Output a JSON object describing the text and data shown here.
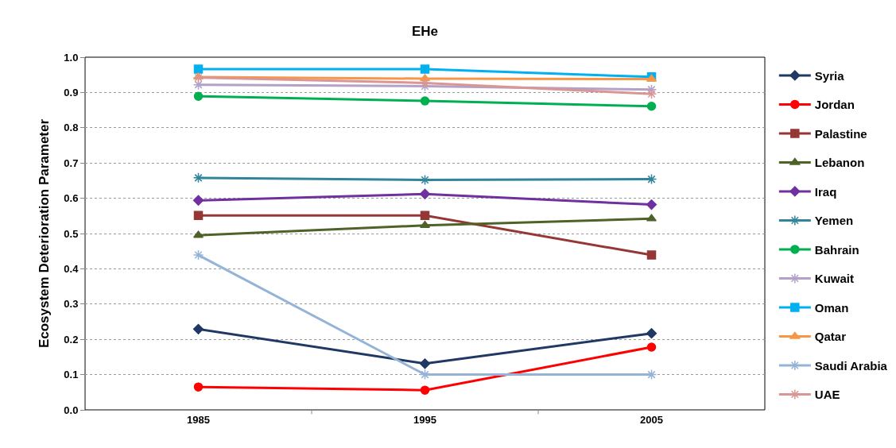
{
  "chart_data": {
    "type": "line",
    "title": "EHe",
    "ylabel": "Ecosystem Deterioration Parameter",
    "categories": [
      "1985",
      "1995",
      "2005"
    ],
    "series": [
      {
        "name": "Syria",
        "color": "#1f3864",
        "marker": "diamond",
        "values": [
          0.229,
          0.131,
          0.217
        ]
      },
      {
        "name": "Jordan",
        "color": "#ff0000",
        "marker": "circle",
        "values": [
          0.065,
          0.056,
          0.178
        ]
      },
      {
        "name": "Palastine",
        "color": "#953735",
        "marker": "square",
        "values": [
          0.551,
          0.551,
          0.439
        ]
      },
      {
        "name": "Lebanon",
        "color": "#4f6228",
        "marker": "triangle",
        "values": [
          0.495,
          0.523,
          0.542
        ]
      },
      {
        "name": "Iraq",
        "color": "#7030a0",
        "marker": "diamond",
        "values": [
          0.594,
          0.612,
          0.582
        ]
      },
      {
        "name": "Yemen",
        "color": "#31849b",
        "marker": "cross",
        "values": [
          0.658,
          0.652,
          0.654
        ]
      },
      {
        "name": "Bahrain",
        "color": "#00b050",
        "marker": "circle",
        "values": [
          0.889,
          0.876,
          0.861
        ]
      },
      {
        "name": "Kuwait",
        "color": "#b3a2c7",
        "marker": "cross",
        "values": [
          0.922,
          0.918,
          0.908
        ]
      },
      {
        "name": "Oman",
        "color": "#00b0f0",
        "marker": "square",
        "values": [
          0.966,
          0.966,
          0.944
        ]
      },
      {
        "name": "Qatar",
        "color": "#f79646",
        "marker": "triangle",
        "values": [
          0.944,
          0.939,
          0.938
        ]
      },
      {
        "name": "Saudi Arabia",
        "color": "#95b3d7",
        "marker": "cross",
        "values": [
          0.439,
          0.1,
          0.1
        ]
      },
      {
        "name": "UAE",
        "color": "#d99694",
        "marker": "cross",
        "values": [
          0.942,
          0.927,
          0.896
        ]
      }
    ],
    "ylim": [
      0,
      1
    ],
    "yticks": [
      {
        "value": 0,
        "label": "0.0"
      },
      {
        "value": 0.1,
        "label": "0.1"
      },
      {
        "value": 0.2,
        "label": "0.2"
      },
      {
        "value": 0.3,
        "label": "0.3"
      },
      {
        "value": 0.4,
        "label": "0.4"
      },
      {
        "value": 0.5,
        "label": "0.5"
      },
      {
        "value": 0.6,
        "label": "0.6"
      },
      {
        "value": 0.7,
        "label": "0.7"
      },
      {
        "value": 0.8,
        "label": "0.8"
      },
      {
        "value": 0.9,
        "label": "0.9"
      },
      {
        "value": 1,
        "label": "1.0"
      }
    ],
    "grid": "y",
    "legend": "right",
    "line_style": "solid"
  }
}
